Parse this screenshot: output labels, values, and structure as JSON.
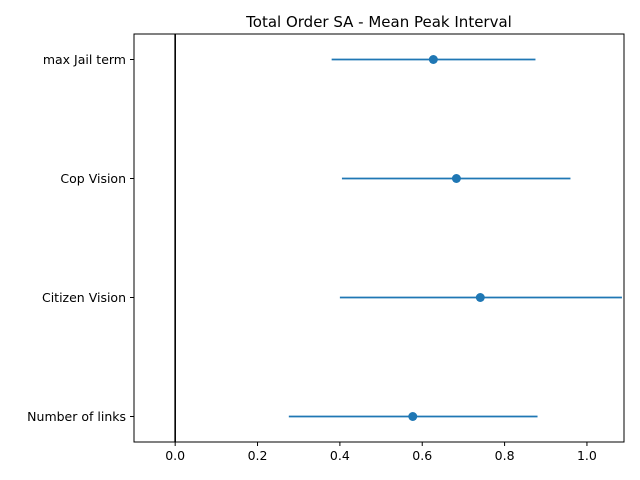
{
  "chart_data": {
    "type": "scatter",
    "title": "Total Order SA - Mean Peak Interval",
    "xlabel": "",
    "ylabel": "",
    "xlim": [
      -0.1,
      1.09
    ],
    "xticks": [
      "0.0",
      "0.2",
      "0.4",
      "0.6",
      "0.8",
      "1.0"
    ],
    "xtick_values": [
      0.0,
      0.2,
      0.4,
      0.6,
      0.8,
      1.0
    ],
    "categories": [
      "max Jail term",
      "Cop Vision",
      "Citizen Vision",
      "Number of links"
    ],
    "values": [
      0.627,
      0.683,
      0.741,
      0.577
    ],
    "ci_low": [
      0.38,
      0.405,
      0.4,
      0.276
    ],
    "ci_high": [
      0.875,
      0.96,
      1.085,
      0.88
    ],
    "reference_line_x": 0.0,
    "grid": false,
    "color": "#1f77b4"
  }
}
